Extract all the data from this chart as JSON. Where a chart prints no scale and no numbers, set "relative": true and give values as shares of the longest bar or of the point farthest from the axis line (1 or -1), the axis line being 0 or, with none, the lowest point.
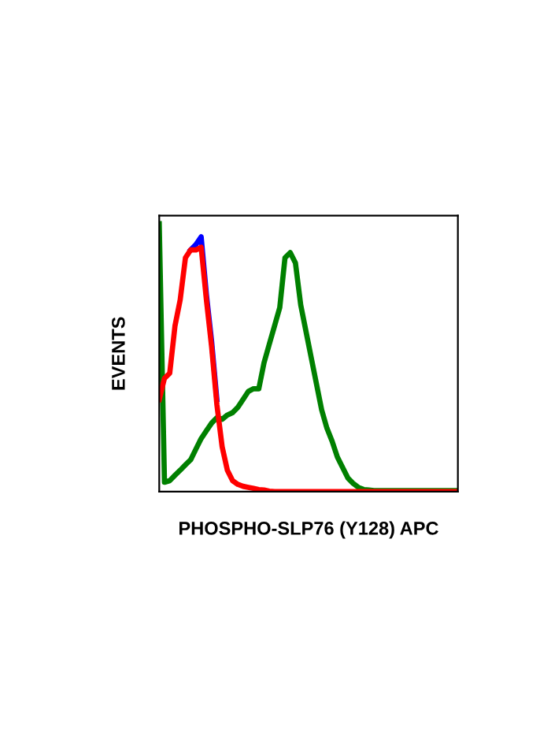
{
  "chart_data": {
    "type": "line",
    "relative": true,
    "xlabel": "PHOSPHO-SLP76 (Y128) APC",
    "ylabel": "EVENTS",
    "categories": [
      null,
      null,
      null,
      null,
      null,
      null,
      null,
      null,
      null,
      null,
      null,
      null,
      null,
      null,
      null,
      null,
      null,
      null,
      null,
      null,
      null,
      null,
      null,
      null,
      null,
      null,
      null,
      null,
      null,
      null,
      null,
      null,
      null,
      null,
      null,
      null,
      null,
      null,
      null,
      null,
      null,
      null,
      null,
      null,
      null,
      null,
      null,
      null,
      null,
      null,
      null,
      null,
      null,
      null,
      null,
      null,
      null,
      null
    ],
    "series": [
      {
        "color": "#0000ff",
        "values": [
          null,
          null,
          null,
          null,
          null,
          null,
          0.902,
          0.922,
          0.951,
          0.736,
          0.56,
          0.344,
          null,
          null,
          null,
          null,
          null,
          null,
          null,
          null,
          null,
          null,
          null,
          null,
          null,
          null,
          null,
          null,
          null,
          null,
          null,
          null,
          null,
          null,
          null,
          null,
          null,
          null,
          null,
          null,
          null,
          null,
          null,
          null,
          null,
          null,
          null,
          null,
          null,
          null,
          null,
          null,
          null,
          null,
          null,
          null,
          null,
          null
        ]
      },
      {
        "color": "#008000",
        "values": [
          1.0,
          0.035,
          0.041,
          0.061,
          0.08,
          0.1,
          0.119,
          0.159,
          0.198,
          0.227,
          0.256,
          0.276,
          0.27,
          0.286,
          0.295,
          0.315,
          0.344,
          0.374,
          0.384,
          0.384,
          0.481,
          0.55,
          0.618,
          0.687,
          0.873,
          0.892,
          0.853,
          0.697,
          0.599,
          0.501,
          0.403,
          0.305,
          0.237,
          0.188,
          0.129,
          0.09,
          0.051,
          0.031,
          0.016,
          0.008,
          0.006,
          0.004,
          0.004,
          0.004,
          0.004,
          0.004,
          0.004,
          0.004,
          0.004,
          0.004,
          0.004,
          0.004,
          0.004,
          0.004,
          0.004,
          0.004,
          0.004,
          0.004
        ]
      },
      {
        "color": "#ff0000",
        "values": [
          0.344,
          0.423,
          0.442,
          0.618,
          0.716,
          0.873,
          0.902,
          0.902,
          0.912,
          0.716,
          0.54,
          0.325,
          0.168,
          0.08,
          0.041,
          0.027,
          0.02,
          0.016,
          0.012,
          0.008,
          0.006,
          0.002,
          0,
          0,
          0,
          0,
          0,
          0,
          0,
          0,
          0,
          0,
          0,
          0,
          0,
          0,
          0,
          0,
          0,
          0,
          0,
          0,
          0,
          0,
          0,
          0,
          0,
          0,
          0,
          0,
          0,
          0,
          0,
          0,
          0,
          0,
          0,
          0
        ]
      }
    ]
  }
}
